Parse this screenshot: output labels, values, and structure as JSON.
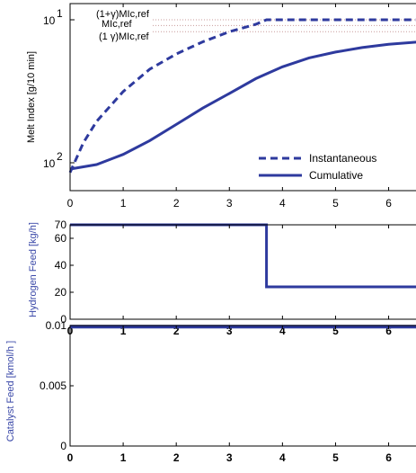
{
  "colors": {
    "series": "#2e3a9e",
    "axis_blue": "#3a48a8",
    "ref_dotted": "#c89a9a",
    "black": "#000000"
  },
  "chart_data": [
    {
      "type": "line",
      "ylabel": "Melt Index [g/10 min]",
      "yscale": "log",
      "xlim": [
        0,
        6.6
      ],
      "xticks": [
        "0",
        "1",
        "2",
        "3",
        "4",
        "5",
        "6"
      ],
      "ytick_labels": [
        "10",
        "10"
      ],
      "ytick_exponents": [
        "1",
        "2"
      ],
      "annotations": [
        "(1+γ)MIc,ref",
        "MIc,ref",
        "(1  γ)MIc,ref"
      ],
      "reference_lines": [
        1.1,
        1.0,
        0.9
      ],
      "legend": [
        "Instantaneous",
        "Cumulative"
      ],
      "legend_position": "lower-right",
      "series": [
        {
          "name": "Instantaneous",
          "style": "dashed",
          "x": [
            0,
            0.25,
            0.5,
            1,
            1.5,
            2,
            2.5,
            3,
            3.5,
            3.7,
            4,
            4.5,
            5,
            5.5,
            6,
            6.6
          ],
          "y": [
            0.085,
            0.14,
            0.2,
            0.33,
            0.48,
            0.62,
            0.76,
            0.9,
            1.02,
            1.1,
            1.1,
            1.1,
            1.1,
            1.1,
            1.1,
            1.1
          ]
        },
        {
          "name": "Cumulative",
          "style": "solid",
          "x": [
            0,
            0.5,
            1,
            1.5,
            2,
            2.5,
            3,
            3.5,
            4,
            4.5,
            5,
            5.5,
            6,
            6.6
          ],
          "y": [
            0.09,
            0.097,
            0.115,
            0.145,
            0.19,
            0.25,
            0.32,
            0.41,
            0.5,
            0.58,
            0.64,
            0.69,
            0.73,
            0.76
          ]
        }
      ]
    },
    {
      "type": "line",
      "ylabel": "Hydrogen Feed [kg/h]",
      "xlim": [
        0,
        6.6
      ],
      "ylim": [
        0,
        70
      ],
      "xticks": [
        "0",
        "1",
        "2",
        "3",
        "4",
        "5",
        "6"
      ],
      "yticks": [
        "0",
        "20",
        "40",
        "60",
        "70"
      ],
      "series": [
        {
          "x": [
            0,
            3.7,
            3.7,
            6.6
          ],
          "y": [
            70,
            70,
            24,
            24
          ]
        }
      ]
    },
    {
      "type": "line",
      "ylabel": "Catalyst Feed [kmol/h  ]",
      "xlim": [
        0,
        6.6
      ],
      "ylim": [
        0,
        0.01
      ],
      "xticks": [
        "0",
        "1",
        "2",
        "3",
        "4",
        "5",
        "6"
      ],
      "yticks": [
        "0",
        "0.005",
        "0.01"
      ],
      "series": [
        {
          "x": [
            0,
            6.6
          ],
          "y": [
            0.0099,
            0.0099
          ]
        }
      ]
    }
  ]
}
